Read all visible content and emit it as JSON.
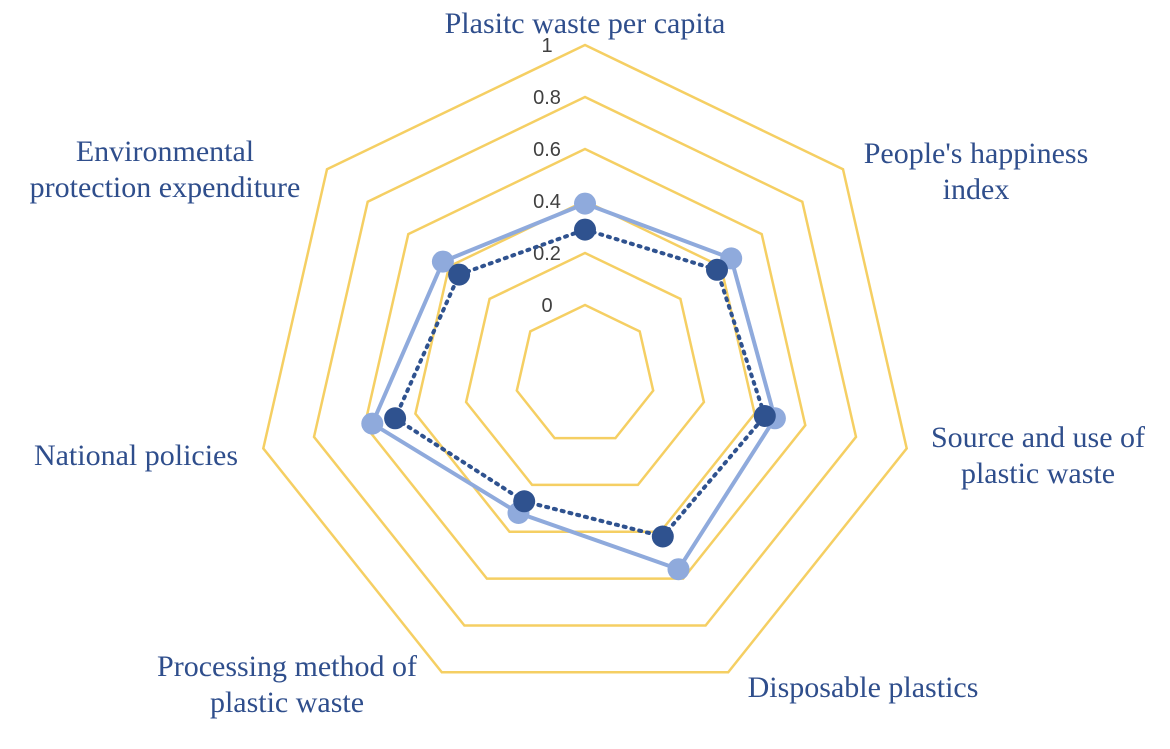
{
  "chart_data": {
    "type": "radar",
    "title": "",
    "axes": [
      {
        "label_lines": [
          "Plasitc waste per capita"
        ]
      },
      {
        "label_lines": [
          "People's happiness",
          "index"
        ]
      },
      {
        "label_lines": [
          "Source and use of",
          "plastic waste"
        ]
      },
      {
        "label_lines": [
          "Disposable plastics"
        ]
      },
      {
        "label_lines": [
          "Processing method of",
          "plastic waste"
        ]
      },
      {
        "label_lines": [
          "National policies"
        ]
      },
      {
        "label_lines": [
          "Environmental",
          "protection expenditure"
        ]
      }
    ],
    "rlim": [
      0,
      1
    ],
    "ticks": [
      "0",
      "0.2",
      "0.4",
      "0.6",
      "0.8",
      "1"
    ],
    "grid_color": "#f5cf63",
    "series": [
      {
        "style": "solid",
        "color": "#8faadc",
        "values": [
          0.39,
          0.45,
          0.48,
          0.56,
          0.32,
          0.57,
          0.43
        ]
      },
      {
        "style": "dotted",
        "color": "#2f528f",
        "values": [
          0.29,
          0.38,
          0.44,
          0.42,
          0.27,
          0.48,
          0.35
        ]
      }
    ]
  }
}
